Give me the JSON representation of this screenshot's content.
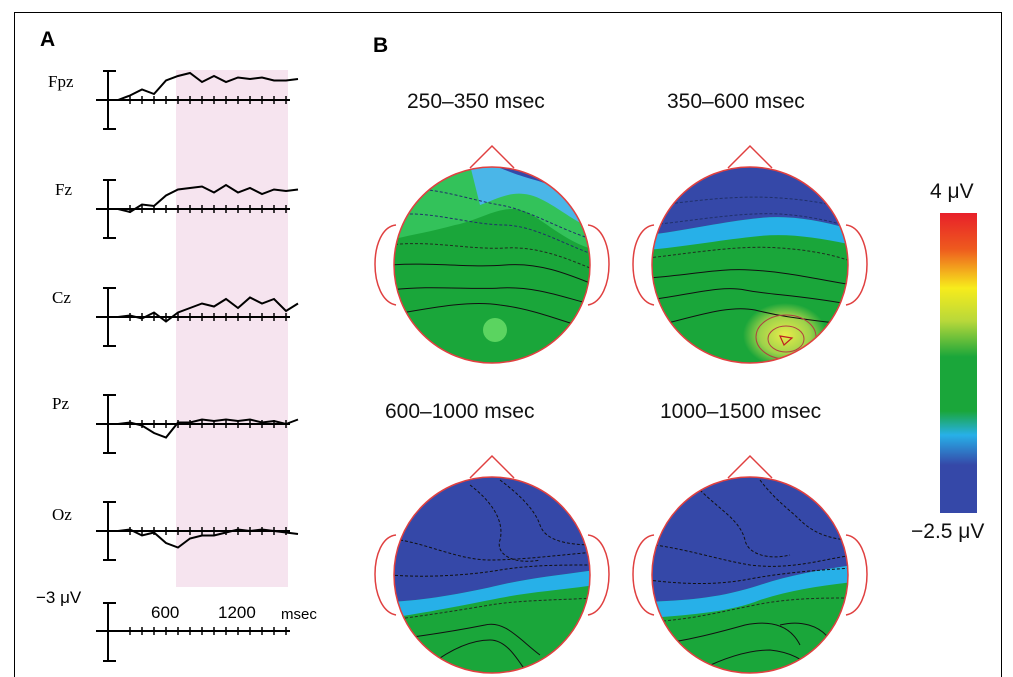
{
  "panel_a": {
    "letter": "A",
    "channels": [
      "Fpz",
      "Fz",
      "Cz",
      "Pz",
      "Oz"
    ],
    "scale_label": "−3 μV",
    "tick_labels": [
      "600",
      "1200"
    ],
    "unit": "msec",
    "highlight_window": [
      600,
      1500
    ],
    "highlight_color": "#f6e4ef"
  },
  "panel_b": {
    "letter": "B",
    "windows": [
      "250–350 msec",
      "350–600 msec",
      "600–1000 msec",
      "1000–1500 msec"
    ],
    "colorbar": {
      "max_label": "4 μV",
      "min_label": "−2.5 μV",
      "colors": [
        "#e8202a",
        "#f7ec1c",
        "#1aa63a",
        "#27b0e8",
        "#3548a8"
      ]
    }
  },
  "chart_data": {
    "type": "line",
    "title": "",
    "xlabel": "msec",
    "ylabel": "−3 μV",
    "xlim": [
      0,
      1500
    ],
    "x_ticks": [
      600,
      1200
    ],
    "series": [
      {
        "name": "Fpz",
        "x": [
          0,
          100,
          200,
          300,
          400,
          500,
          600,
          700,
          800,
          900,
          1000,
          1100,
          1200,
          1300,
          1400,
          1500
        ],
        "values": [
          0,
          0.3,
          0.7,
          0.4,
          1.3,
          1.6,
          1.8,
          1.2,
          1.6,
          1.2,
          1.5,
          1.4,
          1.5,
          1.3,
          1.3,
          1.4
        ]
      },
      {
        "name": "Fz",
        "x": [
          0,
          100,
          200,
          300,
          400,
          500,
          600,
          700,
          800,
          900,
          1000,
          1100,
          1200,
          1300,
          1400,
          1500
        ],
        "values": [
          0,
          -0.2,
          0.3,
          0.2,
          0.9,
          1.3,
          1.4,
          1.5,
          1.1,
          1.6,
          1.1,
          1.4,
          1.0,
          1.3,
          1.2,
          1.3
        ]
      },
      {
        "name": "Cz",
        "x": [
          0,
          100,
          200,
          300,
          400,
          500,
          600,
          700,
          800,
          900,
          1000,
          1100,
          1200,
          1300,
          1400,
          1500
        ],
        "values": [
          0,
          0.1,
          -0.1,
          0.3,
          -0.3,
          0.3,
          0.6,
          0.9,
          0.7,
          1.2,
          0.6,
          1.3,
          0.9,
          1.2,
          0.4,
          0.9
        ]
      },
      {
        "name": "Pz",
        "x": [
          0,
          100,
          200,
          300,
          400,
          500,
          600,
          700,
          800,
          900,
          1000,
          1100,
          1200,
          1300,
          1400,
          1500
        ],
        "values": [
          0,
          0.1,
          -0.1,
          -0.6,
          -0.9,
          0.1,
          0.1,
          0.3,
          0.2,
          0.3,
          0.2,
          0.3,
          0.1,
          0.2,
          0.0,
          0.3
        ]
      },
      {
        "name": "Oz",
        "x": [
          0,
          100,
          200,
          300,
          400,
          500,
          600,
          700,
          800,
          900,
          1000,
          1100,
          1200,
          1300,
          1400,
          1500
        ],
        "values": [
          0,
          0.1,
          -0.3,
          -0.1,
          -0.8,
          -1.1,
          -0.5,
          -0.3,
          -0.3,
          -0.1,
          0.1,
          0.0,
          0.1,
          0.0,
          -0.1,
          -0.2
        ]
      }
    ]
  }
}
